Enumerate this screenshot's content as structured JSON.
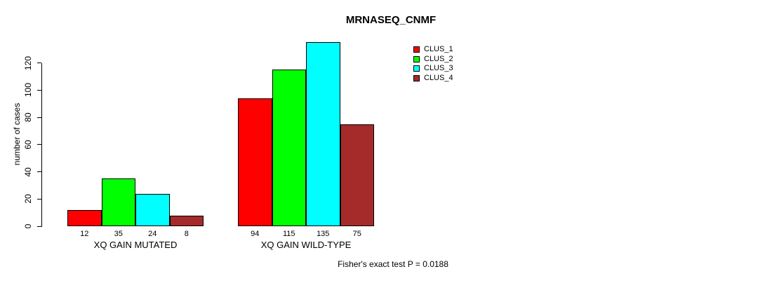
{
  "chart_data": {
    "type": "bar",
    "title": "MRNASEQ_CNMF",
    "ylabel": "number of cases",
    "xlabel": "",
    "annotation": "Fisher's exact test P = 0.0188",
    "categories": [
      "XQ GAIN MUTATED",
      "XQ GAIN WILD-TYPE"
    ],
    "series": [
      {
        "name": "CLUS_1",
        "color": "#FF0000",
        "values": [
          12,
          94
        ]
      },
      {
        "name": "CLUS_2",
        "color": "#00FF00",
        "values": [
          35,
          115
        ]
      },
      {
        "name": "CLUS_3",
        "color": "#00FFFF",
        "values": [
          24,
          135
        ]
      },
      {
        "name": "CLUS_4",
        "color": "#A52A2A",
        "values": [
          8,
          75
        ]
      }
    ],
    "yticks": [
      0,
      20,
      40,
      60,
      80,
      100,
      120
    ],
    "ylim": [
      0,
      135
    ],
    "bar_value_labels": [
      "12",
      "35",
      "24",
      "8",
      "94",
      "115",
      "135",
      "75"
    ],
    "grid": false,
    "legend_position": "top-right",
    "bar_border_color": "#000000",
    "background_color": "#FFFFFF"
  }
}
